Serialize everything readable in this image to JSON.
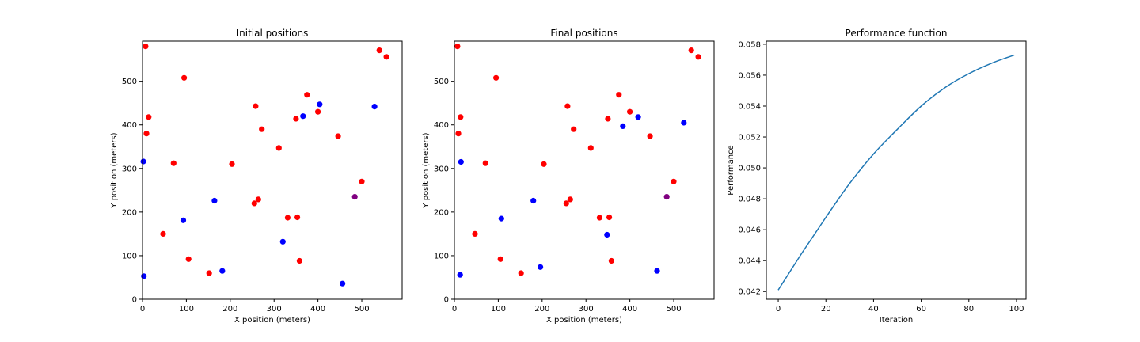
{
  "chart_data": [
    {
      "type": "scatter",
      "title": "Initial positions",
      "xlabel": "X position (meters)",
      "ylabel": "Y position (meters)",
      "xlim": [
        0,
        592
      ],
      "ylim": [
        0,
        592
      ],
      "xticks": [
        0,
        100,
        200,
        300,
        400,
        500
      ],
      "yticks": [
        0,
        100,
        200,
        300,
        400,
        500
      ],
      "grid": false,
      "series": [
        {
          "color": "#ff0000",
          "points": [
            [
              7,
              580
            ],
            [
              95,
              508
            ],
            [
              14,
              418
            ],
            [
              9,
              380
            ],
            [
              71,
              312
            ],
            [
              47,
              150
            ],
            [
              105,
              92
            ],
            [
              152,
              60
            ],
            [
              204,
              310
            ],
            [
              258,
              443
            ],
            [
              272,
              390
            ],
            [
              264,
              229
            ],
            [
              255,
              220
            ],
            [
              311,
              347
            ],
            [
              331,
              187
            ],
            [
              350,
              414
            ],
            [
              353,
              188
            ],
            [
              358,
              88
            ],
            [
              375,
              469
            ],
            [
              400,
              430
            ],
            [
              446,
              374
            ],
            [
              500,
              270
            ],
            [
              540,
              571
            ],
            [
              556,
              556
            ]
          ]
        },
        {
          "color": "#0000ff",
          "points": [
            [
              2,
              316
            ],
            [
              3,
              53
            ],
            [
              93,
              181
            ],
            [
              164,
              226
            ],
            [
              182,
              65
            ],
            [
              320,
              132
            ],
            [
              366,
              420
            ],
            [
              404,
              447
            ],
            [
              456,
              36
            ],
            [
              529,
              442
            ]
          ]
        },
        {
          "color": "#800080",
          "points": [
            [
              484,
              235
            ]
          ]
        }
      ]
    },
    {
      "type": "scatter",
      "title": "Final positions",
      "xlabel": "X position (meters)",
      "ylabel": "Y position (meters)",
      "xlim": [
        0,
        592
      ],
      "ylim": [
        0,
        592
      ],
      "xticks": [
        0,
        100,
        200,
        300,
        400,
        500
      ],
      "yticks": [
        0,
        100,
        200,
        300,
        400,
        500
      ],
      "grid": false,
      "series": [
        {
          "color": "#ff0000",
          "points": [
            [
              7,
              580
            ],
            [
              95,
              508
            ],
            [
              14,
              418
            ],
            [
              9,
              380
            ],
            [
              71,
              312
            ],
            [
              47,
              150
            ],
            [
              105,
              92
            ],
            [
              152,
              60
            ],
            [
              204,
              310
            ],
            [
              258,
              443
            ],
            [
              272,
              390
            ],
            [
              264,
              229
            ],
            [
              255,
              220
            ],
            [
              311,
              347
            ],
            [
              331,
              187
            ],
            [
              350,
              414
            ],
            [
              353,
              188
            ],
            [
              358,
              88
            ],
            [
              375,
              469
            ],
            [
              400,
              430
            ],
            [
              446,
              374
            ],
            [
              500,
              270
            ],
            [
              540,
              571
            ],
            [
              556,
              556
            ]
          ]
        },
        {
          "color": "#0000ff",
          "points": [
            [
              15,
              315
            ],
            [
              13,
              56
            ],
            [
              107,
              185
            ],
            [
              180,
              226
            ],
            [
              196,
              74
            ],
            [
              348,
              148
            ],
            [
              384,
              397
            ],
            [
              419,
              418
            ],
            [
              462,
              65
            ],
            [
              523,
              405
            ]
          ]
        },
        {
          "color": "#800080",
          "points": [
            [
              484,
              235
            ]
          ]
        }
      ]
    },
    {
      "type": "line",
      "title": "Performance function",
      "xlabel": "Iteration",
      "ylabel": "Performance",
      "xlim": [
        -5,
        104
      ],
      "ylim": [
        0.0415,
        0.0582
      ],
      "xticks": [
        0,
        20,
        40,
        60,
        80,
        100
      ],
      "yticks": [
        0.042,
        0.044,
        0.046,
        0.048,
        0.05,
        0.052,
        0.054,
        0.056,
        0.058
      ],
      "ytick_labels": [
        "0.042",
        "0.044",
        "0.046",
        "0.048",
        "0.050",
        "0.052",
        "0.054",
        "0.056",
        "0.058"
      ],
      "grid": false,
      "series": [
        {
          "color": "#1f77b4",
          "x": [
            0,
            10,
            20,
            30,
            40,
            50,
            60,
            70,
            80,
            90,
            99
          ],
          "y": [
            0.0421,
            0.0445,
            0.0468,
            0.049,
            0.0509,
            0.0525,
            0.054,
            0.0552,
            0.0561,
            0.0568,
            0.0573
          ]
        }
      ]
    }
  ]
}
